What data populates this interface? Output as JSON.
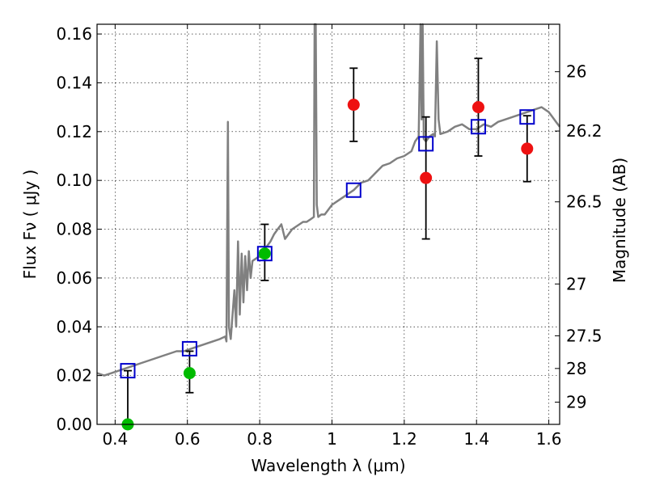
{
  "chart_data": {
    "type": "scatter",
    "title": "",
    "xlabel": "Wavelength  λ (μm)",
    "ylabel": "Flux  Fν  ( μJy )",
    "ylabel_right": "Magnitude (AB)",
    "xlim": [
      0.35,
      1.63
    ],
    "ylim": [
      0.0,
      0.164
    ],
    "grid": true,
    "x_ticks": [
      {
        "value": 0.4,
        "label": "0.4"
      },
      {
        "value": 0.6,
        "label": "0.6"
      },
      {
        "value": 0.8,
        "label": "0.8"
      },
      {
        "value": 1.0,
        "label": "1"
      },
      {
        "value": 1.2,
        "label": "1.2"
      },
      {
        "value": 1.4,
        "label": "1.4"
      },
      {
        "value": 1.6,
        "label": "1.6"
      }
    ],
    "y_ticks": [
      {
        "value": 0.0,
        "label": "0.00"
      },
      {
        "value": 0.02,
        "label": "0.02"
      },
      {
        "value": 0.04,
        "label": "0.04"
      },
      {
        "value": 0.06,
        "label": "0.06"
      },
      {
        "value": 0.08,
        "label": "0.08"
      },
      {
        "value": 0.1,
        "label": "0.10"
      },
      {
        "value": 0.12,
        "label": "0.12"
      },
      {
        "value": 0.14,
        "label": "0.14"
      },
      {
        "value": 0.16,
        "label": "0.16"
      }
    ],
    "right_ticks": [
      {
        "mag": 26,
        "label": "26"
      },
      {
        "mag": 26.2,
        "label": "26.2"
      },
      {
        "mag": 26.5,
        "label": "26.5"
      },
      {
        "mag": 27,
        "label": "27"
      },
      {
        "mag": 27.5,
        "label": "27.5"
      },
      {
        "mag": 28,
        "label": "28"
      },
      {
        "mag": 29,
        "label": "29"
      }
    ],
    "series": [
      {
        "kind": "model_spectrum",
        "color": "#808080",
        "x": [
          0.35,
          0.37,
          0.39,
          0.41,
          0.43,
          0.45,
          0.47,
          0.49,
          0.51,
          0.53,
          0.55,
          0.57,
          0.59,
          0.61,
          0.63,
          0.65,
          0.67,
          0.69,
          0.705,
          0.708,
          0.712,
          0.715,
          0.72,
          0.73,
          0.735,
          0.74,
          0.745,
          0.75,
          0.755,
          0.76,
          0.765,
          0.77,
          0.775,
          0.78,
          0.79,
          0.8,
          0.81,
          0.82,
          0.83,
          0.84,
          0.85,
          0.86,
          0.87,
          0.88,
          0.89,
          0.9,
          0.91,
          0.92,
          0.93,
          0.94,
          0.95,
          0.952,
          0.955,
          0.958,
          0.962,
          0.97,
          0.98,
          0.99,
          1.0,
          1.02,
          1.04,
          1.06,
          1.08,
          1.1,
          1.12,
          1.14,
          1.16,
          1.18,
          1.2,
          1.22,
          1.23,
          1.24,
          1.245,
          1.248,
          1.251,
          1.254,
          1.26,
          1.27,
          1.28,
          1.285,
          1.29,
          1.295,
          1.3,
          1.32,
          1.34,
          1.36,
          1.38,
          1.4,
          1.42,
          1.44,
          1.46,
          1.48,
          1.5,
          1.52,
          1.54,
          1.56,
          1.58,
          1.6,
          1.61,
          1.62,
          1.63
        ],
        "y": [
          0.021,
          0.02,
          0.021,
          0.022,
          0.023,
          0.024,
          0.025,
          0.026,
          0.027,
          0.028,
          0.029,
          0.03,
          0.03,
          0.031,
          0.032,
          0.033,
          0.034,
          0.035,
          0.036,
          0.034,
          0.124,
          0.04,
          0.035,
          0.055,
          0.04,
          0.075,
          0.045,
          0.07,
          0.05,
          0.069,
          0.055,
          0.071,
          0.06,
          0.067,
          0.068,
          0.069,
          0.071,
          0.073,
          0.075,
          0.078,
          0.08,
          0.082,
          0.076,
          0.078,
          0.08,
          0.081,
          0.082,
          0.083,
          0.083,
          0.084,
          0.085,
          0.164,
          0.164,
          0.09,
          0.085,
          0.086,
          0.086,
          0.088,
          0.09,
          0.092,
          0.094,
          0.096,
          0.099,
          0.1,
          0.103,
          0.106,
          0.107,
          0.109,
          0.11,
          0.112,
          0.116,
          0.118,
          0.164,
          0.125,
          0.164,
          0.117,
          0.116,
          0.118,
          0.119,
          0.118,
          0.157,
          0.125,
          0.119,
          0.12,
          0.122,
          0.123,
          0.121,
          0.121,
          0.123,
          0.122,
          0.124,
          0.125,
          0.126,
          0.127,
          0.128,
          0.129,
          0.13,
          0.128,
          0.126,
          0.124,
          0.122
        ]
      },
      {
        "kind": "model_photometry",
        "marker": "open-square",
        "color": "#0000cc",
        "x": [
          0.435,
          0.606,
          0.814,
          1.06,
          1.26,
          1.405,
          1.54
        ],
        "y": [
          0.022,
          0.031,
          0.07,
          0.096,
          0.115,
          0.122,
          0.126
        ]
      },
      {
        "kind": "observed_detections_optical",
        "marker": "filled-circle",
        "color": "#00bb00",
        "x": [
          0.435,
          0.606,
          0.814
        ],
        "y": [
          0.0,
          0.021,
          0.07
        ],
        "err_low": [
          0.0,
          0.008,
          0.011
        ],
        "err_high": [
          0.022,
          0.009,
          0.012
        ]
      },
      {
        "kind": "observed_detections_nir",
        "marker": "filled-circle",
        "color": "#ee1111",
        "x": [
          1.06,
          1.26,
          1.405,
          1.54
        ],
        "y": [
          0.131,
          0.101,
          0.13,
          0.113
        ],
        "err_low": [
          0.015,
          0.025,
          0.02,
          0.0135
        ],
        "err_high": [
          0.015,
          0.025,
          0.02,
          0.0135
        ]
      }
    ]
  }
}
